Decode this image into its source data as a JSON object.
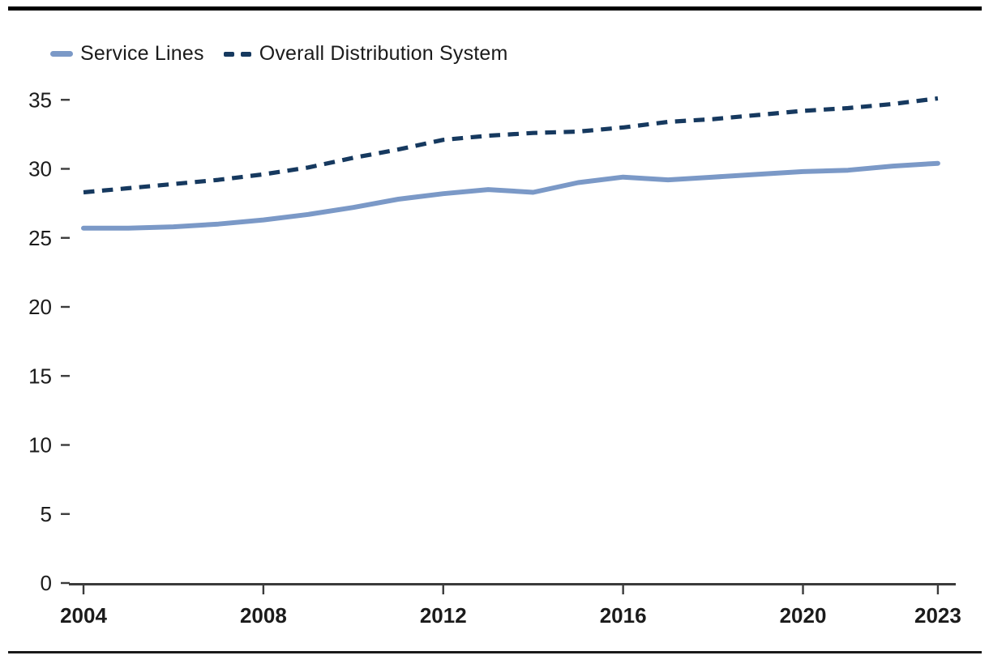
{
  "legend": {
    "series1_label": "Service Lines",
    "series2_label": "Overall Distribution System"
  },
  "colors": {
    "service_lines": "#7b99c7",
    "overall_distribution": "#16395f",
    "axis": "#3b3b3b",
    "tick_text": "#1b1b1b",
    "top_rule": "#000000",
    "bottom_rule": "#1a1a1a"
  },
  "chart_data": {
    "type": "line",
    "title": "",
    "xlabel": "",
    "ylabel": "",
    "grid": false,
    "legend_position": "top-left",
    "x": [
      2004,
      2005,
      2006,
      2007,
      2008,
      2009,
      2010,
      2011,
      2012,
      2013,
      2014,
      2015,
      2016,
      2017,
      2018,
      2019,
      2020,
      2021,
      2022,
      2023
    ],
    "series": [
      {
        "name": "Service Lines",
        "style": "solid",
        "color_key": "service_lines",
        "values": [
          25.7,
          25.7,
          25.8,
          26.0,
          26.3,
          26.7,
          27.2,
          27.8,
          28.2,
          28.5,
          28.3,
          29.0,
          29.4,
          29.2,
          29.4,
          29.6,
          29.8,
          29.9,
          30.2,
          30.4
        ]
      },
      {
        "name": "Overall Distribution System",
        "style": "dashed",
        "color_key": "overall_distribution",
        "values": [
          28.3,
          28.6,
          28.9,
          29.2,
          29.6,
          30.1,
          30.8,
          31.4,
          32.1,
          32.4,
          32.6,
          32.7,
          33.0,
          33.4,
          33.6,
          33.9,
          34.2,
          34.4,
          34.7,
          35.1
        ]
      }
    ],
    "xticks": [
      2004,
      2008,
      2012,
      2016,
      2020,
      2023
    ],
    "yticks": [
      0,
      5,
      10,
      15,
      20,
      25,
      30,
      35
    ],
    "xlim": [
      2004,
      2023
    ],
    "ylim": [
      0,
      35
    ]
  }
}
